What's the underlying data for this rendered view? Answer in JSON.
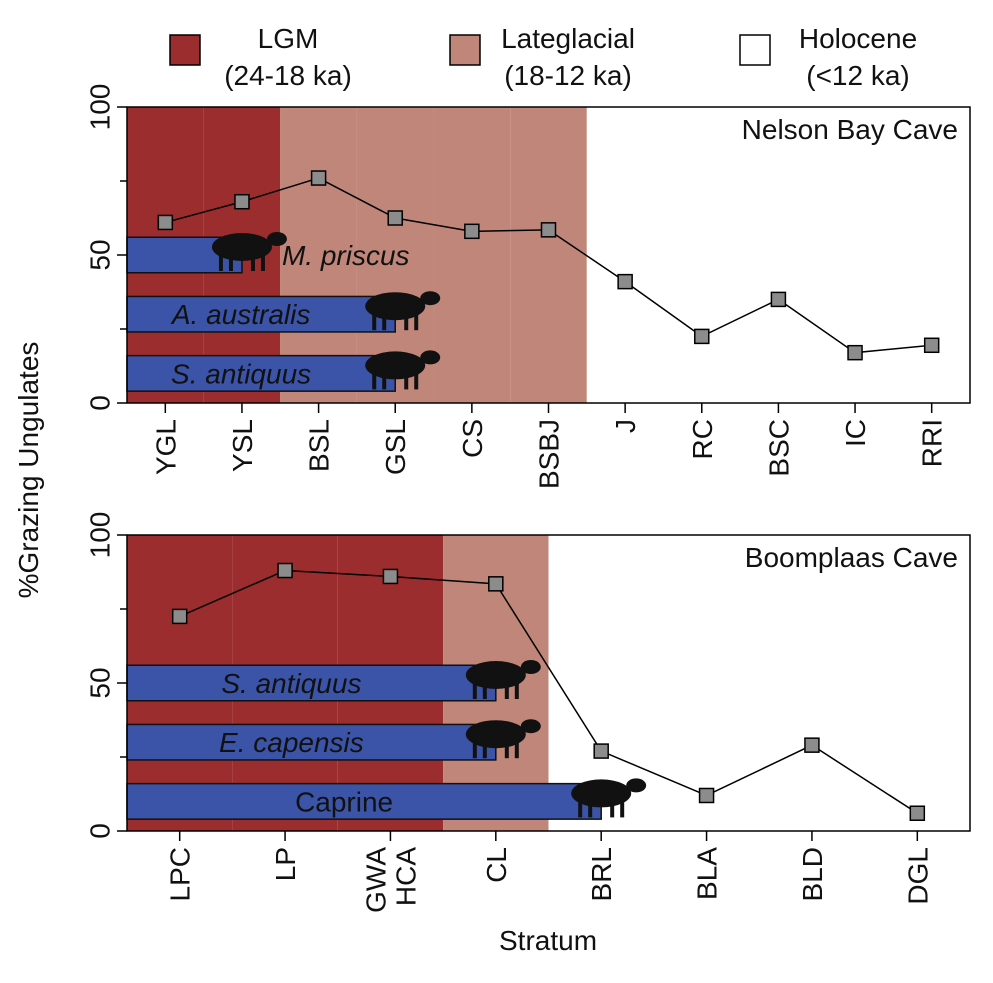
{
  "legend": [
    {
      "name": "LGM",
      "period": "(24-18 ka)",
      "color": "#9b2d2f"
    },
    {
      "name": "Lateglacial",
      "period": "(18-12 ka)",
      "color": "#c0867a"
    },
    {
      "name": "Holocene",
      "period": "(<12 ka)",
      "color": "#ffffff"
    }
  ],
  "ylabel": "%Grazing Ungulates",
  "xlabel": "Stratum",
  "chart_data": [
    {
      "type": "line",
      "title": "Nelson Bay Cave",
      "categories": [
        "YGL",
        "YSL",
        "BSL",
        "GSL",
        "CS",
        "BSBJ",
        "J",
        "RC",
        "BSC",
        "IC",
        "RRI"
      ],
      "values": [
        61,
        68,
        76,
        62.5,
        58,
        58.5,
        41,
        22.5,
        35,
        17,
        19.5
      ],
      "periods": [
        0,
        0,
        1,
        1,
        1,
        1,
        2,
        2,
        2,
        2,
        2
      ],
      "species": [
        {
          "name": "M. priscus",
          "to": 1,
          "italic": true
        },
        {
          "name": "A. australis",
          "to": 3,
          "italic": true
        },
        {
          "name": "S. antiquus",
          "to": 3,
          "italic": true
        }
      ],
      "ylim": [
        0,
        100
      ],
      "yticks": [
        0,
        50,
        100
      ],
      "yminor": [
        25,
        75
      ],
      "color": "#000000",
      "marker_color": "#8c8c8c",
      "bar_color": "#3b54a8"
    },
    {
      "type": "line",
      "title": "Boomplaas Cave",
      "categories": [
        "LPC",
        "LP",
        "GWA HCA",
        "CL",
        "BRL",
        "BLA",
        "BLD",
        "DGL"
      ],
      "values": [
        72.5,
        88,
        86,
        83.5,
        27,
        12,
        29,
        6
      ],
      "periods": [
        0,
        0,
        0,
        1,
        2,
        2,
        2,
        2
      ],
      "species": [
        {
          "name": "S. antiquus",
          "to": 3,
          "italic": true
        },
        {
          "name": "E. capensis",
          "to": 3,
          "italic": true
        },
        {
          "name": "Caprine",
          "to": 4,
          "italic": false
        }
      ],
      "ylim": [
        0,
        100
      ],
      "yticks": [
        0,
        50,
        100
      ],
      "yminor": [
        25,
        75
      ],
      "color": "#000000",
      "marker_color": "#8c8c8c",
      "bar_color": "#3b54a8"
    }
  ]
}
